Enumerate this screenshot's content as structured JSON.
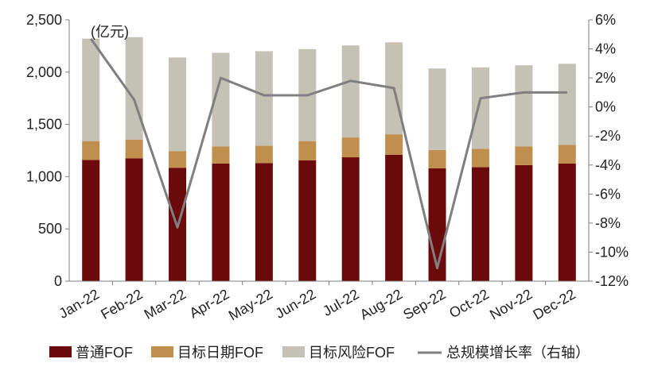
{
  "chart_data": {
    "type": "bar",
    "unit_label": "(亿元)",
    "categories": [
      "Jan-22",
      "Feb-22",
      "Mar-22",
      "Apr-22",
      "May-22",
      "Jun-22",
      "Jul-22",
      "Aug-22",
      "Sep-22",
      "Oct-22",
      "Nov-22",
      "Dec-22"
    ],
    "series": [
      {
        "name": "普通FOF",
        "kind": "stacked-bar",
        "axis": "left",
        "color": "#6b0a0a",
        "values": [
          1160,
          1175,
          1085,
          1125,
          1130,
          1155,
          1185,
          1210,
          1080,
          1090,
          1110,
          1125
        ]
      },
      {
        "name": "目标日期FOF",
        "kind": "stacked-bar",
        "axis": "left",
        "color": "#c08f4e",
        "values": [
          180,
          180,
          160,
          165,
          165,
          185,
          190,
          195,
          175,
          175,
          180,
          180
        ]
      },
      {
        "name": "目标风险FOF",
        "kind": "stacked-bar",
        "axis": "left",
        "color": "#c4c2b4",
        "values": [
          980,
          980,
          895,
          895,
          905,
          880,
          880,
          880,
          780,
          780,
          775,
          775
        ]
      },
      {
        "name": "总规模增长率（右轴）",
        "kind": "line",
        "axis": "right",
        "color": "#7f7f7f",
        "values": [
          4.7,
          0.5,
          -8.3,
          2.0,
          0.8,
          0.8,
          1.8,
          1.3,
          -11.1,
          0.6,
          1.0,
          1.0
        ]
      }
    ],
    "y_left": {
      "min": 0,
      "max": 2500,
      "ticks": [
        0,
        500,
        1000,
        1500,
        2000,
        2500
      ],
      "tick_labels": [
        "0",
        "500",
        "1,000",
        "1,500",
        "2,000",
        "2,500"
      ]
    },
    "y_right": {
      "min": -12,
      "max": 6,
      "ticks": [
        -12,
        -10,
        -8,
        -6,
        -4,
        -2,
        0,
        2,
        4,
        6
      ],
      "tick_labels": [
        "-12%",
        "-10%",
        "-8%",
        "-6%",
        "-4%",
        "-2%",
        "0%",
        "2%",
        "4%",
        "6%"
      ]
    },
    "grid": false,
    "legend_position": "bottom"
  }
}
